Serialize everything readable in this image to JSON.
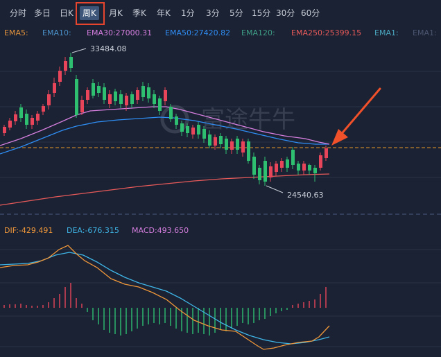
{
  "tabs": [
    {
      "label": "分时",
      "active": false
    },
    {
      "label": "多日",
      "active": false
    },
    {
      "label": "日K",
      "active": false
    },
    {
      "label": "周K",
      "active": true
    },
    {
      "label": "月K",
      "active": false
    },
    {
      "label": "季K",
      "active": false
    },
    {
      "label": "年K",
      "active": false
    },
    {
      "label": "1分",
      "active": false
    },
    {
      "label": "3分",
      "active": false
    },
    {
      "label": "5分",
      "active": false
    },
    {
      "label": "15分",
      "active": false
    },
    {
      "label": "30分",
      "active": false
    },
    {
      "label": "60分",
      "active": false
    }
  ],
  "ema_legend": {
    "ema5": "EMA5:",
    "ema10": "EMA10:",
    "ema30": "EMA30:27000.31",
    "ema50": "EMA50:27420.82",
    "ema120": "EMA120:",
    "ema250": "EMA250:25399.15",
    "ema1": "EMA1:",
    "ema_extra": "EMA1:"
  },
  "macd_legend": {
    "dif": "DIF:-429.491",
    "dea": "DEA:-676.315",
    "macd": "MACD:493.650"
  },
  "price_labels": {
    "high": "33484.08",
    "low": "24540.63"
  },
  "watermark": "富途牛牛",
  "colors": {
    "up": "#e8455a",
    "down": "#2fbf71",
    "ema30": "#d67fe0",
    "ema50": "#2f8ef5",
    "ema250": "#e85a5a",
    "dif": "#f0973a",
    "dea": "#3fb6e8",
    "arrow": "#f0502a",
    "dashed": "#e89a2a"
  }
}
